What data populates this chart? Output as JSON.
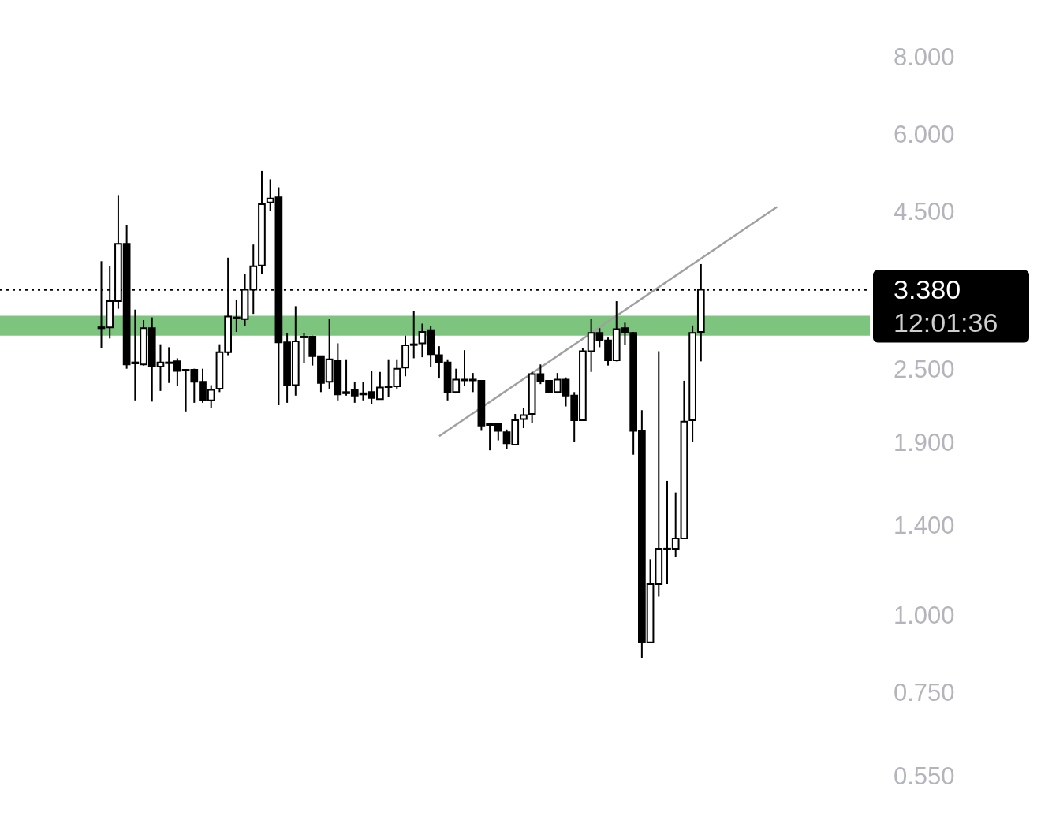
{
  "chart_data": {
    "type": "candlestick",
    "color": "#000000",
    "log": "y",
    "tick_labels": "y",
    "legend": false,
    "categories": [
      null,
      null,
      null,
      null,
      null,
      null,
      null,
      null,
      null,
      null,
      null,
      null,
      null,
      null,
      null,
      null,
      null,
      null,
      null,
      null,
      null,
      null,
      null,
      null,
      null,
      null,
      null,
      null,
      null,
      null,
      null,
      null,
      null,
      null,
      null,
      null,
      null,
      null,
      null,
      null,
      null,
      null,
      null,
      null,
      null,
      null,
      null,
      null,
      null,
      null,
      null,
      null,
      null,
      null,
      null,
      null,
      null,
      null,
      null,
      null,
      null,
      null,
      null,
      null,
      null,
      null,
      null,
      null,
      null,
      null,
      null,
      null,
      null,
      null,
      null,
      null,
      null,
      null,
      null,
      null,
      null,
      null,
      null,
      null,
      null,
      null,
      null,
      null,
      null,
      null,
      null,
      null,
      null,
      null,
      null,
      null,
      null,
      null,
      null,
      null,
      null,
      null,
      null,
      null
    ],
    "ohlc": [
      null,
      null,
      null,
      null,
      null,
      null,
      null,
      null,
      null,
      null,
      null,
      null,
      [
        2.93,
        3.76,
        2.72,
        2.94
      ],
      [
        2.94,
        3.69,
        2.82,
        3.24
      ],
      [
        3.24,
        4.81,
        3.15,
        4.01
      ],
      [
        4.01,
        4.3,
        2.52,
        2.56
      ],
      [
        2.57,
        3.14,
        2.24,
        2.58
      ],
      [
        2.56,
        3.02,
        2.55,
        2.93
      ],
      [
        2.93,
        3.05,
        2.23,
        2.54
      ],
      [
        2.54,
        2.76,
        2.32,
        2.58
      ],
      [
        2.58,
        2.73,
        2.39,
        2.58
      ],
      [
        2.59,
        2.62,
        2.36,
        2.5
      ],
      [
        2.51,
        2.51,
        2.15,
        2.51
      ],
      [
        2.51,
        2.52,
        2.22,
        2.4
      ],
      [
        2.4,
        2.52,
        2.22,
        2.24
      ],
      [
        2.24,
        2.37,
        2.18,
        2.33
      ],
      [
        2.34,
        2.76,
        2.31,
        2.68
      ],
      [
        2.68,
        3.81,
        2.65,
        3.06
      ],
      [
        3.05,
        3.26,
        2.89,
        3.05
      ],
      [
        3.03,
        3.59,
        2.95,
        3.38
      ],
      [
        3.38,
        4.0,
        3.09,
        3.69
      ],
      [
        3.7,
        5.26,
        3.58,
        4.65
      ],
      [
        4.68,
        5.1,
        4.53,
        4.75
      ],
      [
        4.77,
        4.95,
        2.2,
        2.78
      ],
      [
        2.78,
        2.88,
        2.22,
        2.37
      ],
      [
        2.37,
        3.18,
        2.28,
        2.79
      ],
      [
        2.84,
        2.88,
        2.57,
        2.84
      ],
      [
        2.84,
        2.85,
        2.55,
        2.64
      ],
      [
        2.64,
        2.64,
        2.31,
        2.39
      ],
      [
        2.4,
        3.03,
        2.34,
        2.61
      ],
      [
        2.6,
        2.77,
        2.24,
        2.29
      ],
      [
        2.31,
        2.61,
        2.28,
        2.3
      ],
      [
        2.33,
        2.4,
        2.22,
        2.28
      ],
      [
        2.3,
        2.4,
        2.24,
        2.29
      ],
      [
        2.31,
        2.5,
        2.21,
        2.26
      ],
      [
        2.25,
        2.49,
        2.25,
        2.35
      ],
      [
        2.36,
        2.61,
        2.27,
        2.36
      ],
      [
        2.36,
        2.61,
        2.34,
        2.52
      ],
      [
        2.53,
        2.85,
        2.45,
        2.75
      ],
      [
        2.76,
        3.12,
        2.62,
        2.76
      ],
      [
        2.77,
        2.98,
        2.63,
        2.89
      ],
      [
        2.91,
        2.95,
        2.54,
        2.66
      ],
      [
        2.65,
        2.74,
        2.43,
        2.58
      ],
      [
        2.58,
        2.61,
        2.24,
        2.31
      ],
      [
        2.31,
        2.52,
        2.31,
        2.42
      ],
      [
        2.42,
        2.7,
        2.36,
        2.42
      ],
      [
        2.42,
        2.48,
        2.31,
        2.42
      ],
      [
        2.41,
        2.41,
        2.0,
        2.04
      ],
      [
        2.05,
        2.05,
        1.86,
        2.05
      ],
      [
        2.05,
        2.06,
        1.93,
        2.0
      ],
      [
        1.99,
        2.01,
        1.87,
        1.91
      ],
      [
        1.9,
        2.13,
        1.9,
        2.08
      ],
      [
        2.09,
        2.18,
        2.02,
        2.12
      ],
      [
        2.13,
        2.49,
        2.06,
        2.47
      ],
      [
        2.47,
        2.56,
        2.38,
        2.41
      ],
      [
        2.41,
        2.41,
        2.31,
        2.31
      ],
      [
        2.31,
        2.48,
        2.3,
        2.42
      ],
      [
        2.42,
        2.44,
        2.19,
        2.28
      ],
      [
        2.28,
        2.31,
        1.92,
        2.08
      ],
      [
        2.08,
        2.72,
        2.08,
        2.69
      ],
      [
        2.69,
        3.03,
        2.49,
        2.88
      ],
      [
        2.88,
        2.93,
        2.73,
        2.8
      ],
      [
        2.8,
        2.83,
        2.55,
        2.6
      ],
      [
        2.6,
        3.24,
        2.59,
        2.92
      ],
      [
        2.93,
        2.99,
        2.75,
        2.89
      ],
      [
        2.88,
        2.89,
        1.83,
        2.0
      ],
      [
        2.0,
        2.16,
        0.86,
        0.91
      ],
      [
        0.91,
        1.24,
        0.91,
        1.13
      ],
      [
        1.13,
        2.69,
        1.08,
        1.29
      ],
      [
        1.29,
        1.66,
        1.13,
        1.29
      ],
      [
        1.29,
        1.59,
        1.25,
        1.34
      ],
      [
        1.34,
        2.41,
        1.34,
        2.07
      ],
      [
        2.08,
        2.96,
        1.92,
        2.88
      ],
      [
        2.89,
        3.72,
        2.59,
        3.38
      ],
      null,
      null,
      null,
      null,
      null,
      null,
      null,
      null,
      null,
      null,
      null,
      null,
      null,
      null,
      null,
      null,
      null,
      null,
      null,
      null
    ],
    "series": [
      {
        "type": "line",
        "color": "#a0a0a0",
        "values": [
          null,
          null,
          null,
          null,
          null,
          null,
          null,
          null,
          null,
          null,
          null,
          null,
          null,
          null,
          null,
          null,
          null,
          null,
          null,
          null,
          null,
          null,
          null,
          null,
          null,
          null,
          null,
          null,
          null,
          null,
          null,
          null,
          null,
          null,
          null,
          null,
          null,
          null,
          null,
          null,
          null,
          null,
          null,
          null,
          null,
          null,
          null,
          null,
          null,
          null,
          null,
          null,
          1.96,
          null,
          null,
          null,
          null,
          null,
          null,
          null,
          null,
          null,
          null,
          null,
          null,
          null,
          null,
          null,
          null,
          null,
          null,
          null,
          null,
          null,
          null,
          null,
          null,
          null,
          null,
          null,
          null,
          null,
          null,
          null,
          null,
          null,
          null,
          null,
          null,
          null,
          null,
          null,
          4.6,
          null,
          null,
          null,
          null,
          null,
          null,
          null,
          null,
          null,
          null,
          null
        ]
      }
    ],
    "ylim": [
      0.55,
      8
    ],
    "yticks": [
      {
        "value": 0.55,
        "label": "0.550"
      },
      {
        "value": 0.75,
        "label": "0.750"
      },
      {
        "value": 1,
        "label": "1.000"
      },
      {
        "value": 1.4,
        "label": "1.400"
      },
      {
        "value": 1.9,
        "label": "1.900"
      },
      {
        "value": 2.5,
        "label": "2.500"
      },
      {
        "value": 4.5,
        "label": "4.500"
      },
      {
        "value": 6,
        "label": "6.000"
      },
      {
        "value": 8,
        "label": "8.000"
      }
    ],
    "bands": [
      {
        "axis": "y",
        "from": 2.85,
        "to": 3.07,
        "color": "#7dc47e"
      }
    ],
    "ref_lines": [
      {
        "axis": "y",
        "value": 3.38,
        "label": "3.380\n12:01:36",
        "color": "#000000",
        "line_style": "dotted"
      }
    ]
  }
}
